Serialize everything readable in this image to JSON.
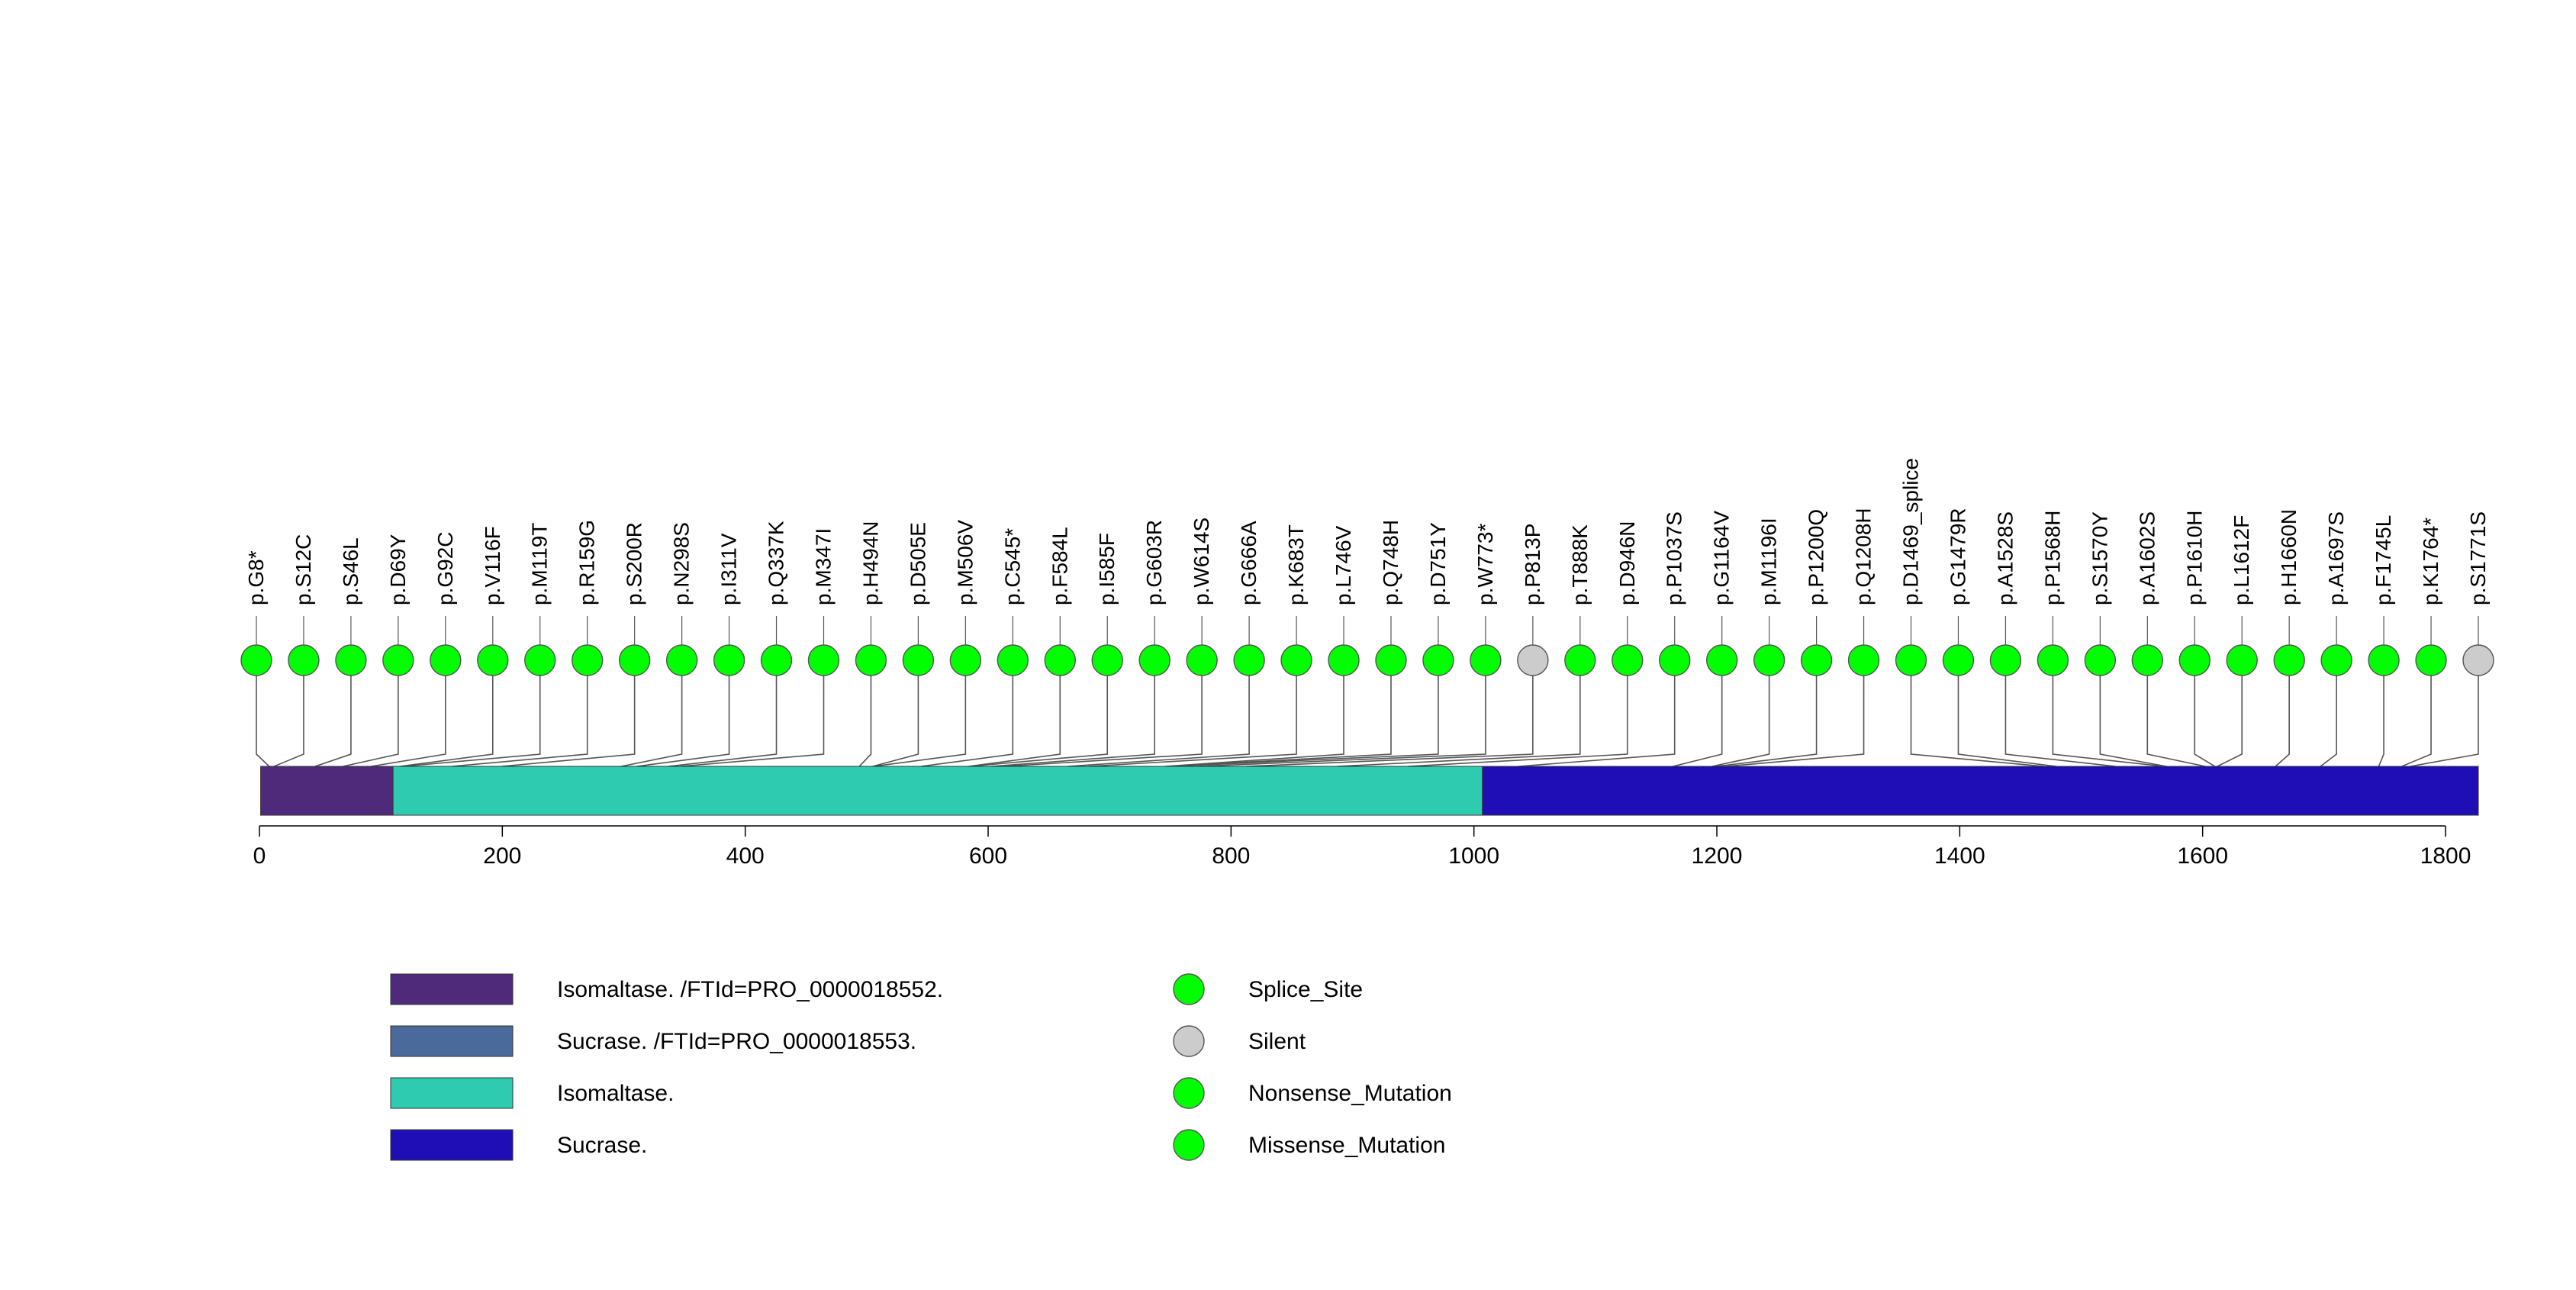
{
  "chart_data": {
    "type": "lollipop",
    "protein_length": 1827,
    "x_range": [
      0,
      1827
    ],
    "x_ticks": [
      0,
      200,
      400,
      600,
      800,
      1000,
      1200,
      1400,
      1600,
      1800
    ],
    "colors": {
      "mutation_marker": "#00ff00",
      "silent_marker": "#cccccc",
      "backbone_connector": "#555555",
      "domain_border": "#333333",
      "Isomaltase. /FTId=PRO_0000018552.": "#4f297a",
      "Sucrase. /FTId=PRO_0000018553.": "#4a6a9c",
      "Isomaltase.": "#2ecbb0",
      "Sucrase.": "#1f0db5"
    },
    "domains": [
      {
        "label": "Isomaltase. /FTId=PRO_0000018552.",
        "start": 1,
        "end": 110
      },
      {
        "label": "Isomaltase.",
        "start": 110,
        "end": 1007
      },
      {
        "label": "Sucrase.",
        "start": 1007,
        "end": 1827
      }
    ],
    "mutations": [
      {
        "label": "p.G8*",
        "position": 8,
        "type": "Nonsense_Mutation"
      },
      {
        "label": "p.S12C",
        "position": 12,
        "type": "Missense_Mutation"
      },
      {
        "label": "p.S46L",
        "position": 46,
        "type": "Missense_Mutation"
      },
      {
        "label": "p.D69Y",
        "position": 69,
        "type": "Missense_Mutation"
      },
      {
        "label": "p.G92C",
        "position": 92,
        "type": "Missense_Mutation"
      },
      {
        "label": "p.V116F",
        "position": 116,
        "type": "Missense_Mutation"
      },
      {
        "label": "p.M119T",
        "position": 119,
        "type": "Missense_Mutation"
      },
      {
        "label": "p.R159G",
        "position": 159,
        "type": "Missense_Mutation"
      },
      {
        "label": "p.S200R",
        "position": 200,
        "type": "Missense_Mutation"
      },
      {
        "label": "p.N298S",
        "position": 298,
        "type": "Missense_Mutation"
      },
      {
        "label": "p.I311V",
        "position": 311,
        "type": "Missense_Mutation"
      },
      {
        "label": "p.Q337K",
        "position": 337,
        "type": "Missense_Mutation"
      },
      {
        "label": "p.M347I",
        "position": 347,
        "type": "Missense_Mutation"
      },
      {
        "label": "p.H494N",
        "position": 494,
        "type": "Missense_Mutation"
      },
      {
        "label": "p.D505E",
        "position": 505,
        "type": "Missense_Mutation"
      },
      {
        "label": "p.M506V",
        "position": 506,
        "type": "Missense_Mutation"
      },
      {
        "label": "p.C545*",
        "position": 545,
        "type": "Nonsense_Mutation"
      },
      {
        "label": "p.F584L",
        "position": 584,
        "type": "Missense_Mutation"
      },
      {
        "label": "p.I585F",
        "position": 585,
        "type": "Missense_Mutation"
      },
      {
        "label": "p.G603R",
        "position": 603,
        "type": "Missense_Mutation"
      },
      {
        "label": "p.W614S",
        "position": 614,
        "type": "Missense_Mutation"
      },
      {
        "label": "p.G666A",
        "position": 666,
        "type": "Missense_Mutation"
      },
      {
        "label": "p.K683T",
        "position": 683,
        "type": "Missense_Mutation"
      },
      {
        "label": "p.L746V",
        "position": 746,
        "type": "Missense_Mutation"
      },
      {
        "label": "p.Q748H",
        "position": 748,
        "type": "Missense_Mutation"
      },
      {
        "label": "p.D751Y",
        "position": 751,
        "type": "Missense_Mutation"
      },
      {
        "label": "p.W773*",
        "position": 773,
        "type": "Nonsense_Mutation"
      },
      {
        "label": "p.P813P",
        "position": 813,
        "type": "Silent"
      },
      {
        "label": "p.T888K",
        "position": 888,
        "type": "Missense_Mutation"
      },
      {
        "label": "p.D946N",
        "position": 946,
        "type": "Missense_Mutation"
      },
      {
        "label": "p.P1037S",
        "position": 1037,
        "type": "Missense_Mutation"
      },
      {
        "label": "p.G1164V",
        "position": 1164,
        "type": "Missense_Mutation"
      },
      {
        "label": "p.M1196I",
        "position": 1196,
        "type": "Missense_Mutation"
      },
      {
        "label": "p.P1200Q",
        "position": 1200,
        "type": "Missense_Mutation"
      },
      {
        "label": "p.Q1208H",
        "position": 1208,
        "type": "Missense_Mutation"
      },
      {
        "label": "p.D1469_splice",
        "position": 1469,
        "type": "Splice_Site"
      },
      {
        "label": "p.G1479R",
        "position": 1479,
        "type": "Missense_Mutation"
      },
      {
        "label": "p.A1528S",
        "position": 1528,
        "type": "Missense_Mutation"
      },
      {
        "label": "p.P1568H",
        "position": 1568,
        "type": "Missense_Mutation"
      },
      {
        "label": "p.S1570Y",
        "position": 1570,
        "type": "Missense_Mutation"
      },
      {
        "label": "p.A1602S",
        "position": 1602,
        "type": "Missense_Mutation"
      },
      {
        "label": "p.P1610H",
        "position": 1610,
        "type": "Missense_Mutation"
      },
      {
        "label": "p.L1612F",
        "position": 1612,
        "type": "Missense_Mutation"
      },
      {
        "label": "p.H1660N",
        "position": 1660,
        "type": "Missense_Mutation"
      },
      {
        "label": "p.A1697S",
        "position": 1697,
        "type": "Missense_Mutation"
      },
      {
        "label": "p.F1745L",
        "position": 1745,
        "type": "Missense_Mutation"
      },
      {
        "label": "p.K1764*",
        "position": 1764,
        "type": "Nonsense_Mutation"
      },
      {
        "label": "p.S1771S",
        "position": 1771,
        "type": "Silent"
      }
    ],
    "domain_legend": [
      {
        "label": "Isomaltase. /FTId=PRO_0000018552."
      },
      {
        "label": "Sucrase. /FTId=PRO_0000018553."
      },
      {
        "label": "Isomaltase."
      },
      {
        "label": "Sucrase."
      }
    ],
    "mutation_legend": [
      {
        "label": "Splice_Site",
        "type": "Splice_Site"
      },
      {
        "label": "Silent",
        "type": "Silent"
      },
      {
        "label": "Nonsense_Mutation",
        "type": "Nonsense_Mutation"
      },
      {
        "label": "Missense_Mutation",
        "type": "Missense_Mutation"
      }
    ]
  }
}
